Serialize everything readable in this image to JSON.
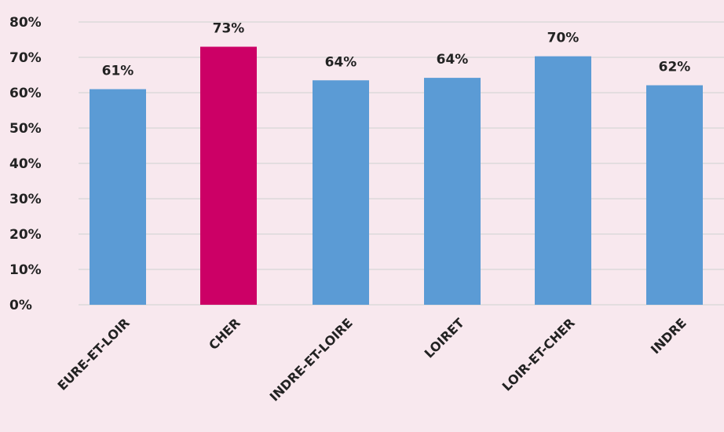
{
  "chart_data": {
    "type": "bar",
    "title": "",
    "xlabel": "",
    "ylabel": "",
    "categories": [
      "EURE-ET-LOIR",
      "CHER",
      "INDRE-ET-LOIRE",
      "LOIRET",
      "LOIR-ET-CHER",
      "INDRE"
    ],
    "values": [
      61,
      73,
      63.5,
      64.2,
      70.3,
      62.1
    ],
    "data_labels": [
      "61%",
      "73%",
      "64%",
      "64%",
      "70%",
      "62%"
    ],
    "ylim": [
      0,
      80
    ],
    "yticks": [
      0,
      10,
      20,
      30,
      40,
      50,
      60,
      70,
      80
    ],
    "ytick_labels": [
      "0%",
      "10%",
      "20%",
      "30%",
      "40%",
      "50%",
      "60%",
      "70%",
      "80%"
    ],
    "grid": true,
    "highlight_index": 1,
    "colors": {
      "bar": "#5b9bd5",
      "highlight": "#cc0066",
      "highlight_label": "#cc0066",
      "label": "#222222",
      "background": "#f8e8ee",
      "grid": "#d6d6d6"
    }
  }
}
